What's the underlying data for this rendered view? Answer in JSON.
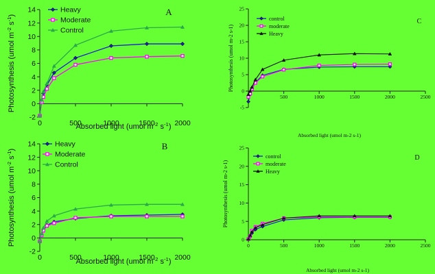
{
  "chart_data": [
    {
      "type": "line",
      "panel_letter": "A",
      "xlabel": "Absorbed light (umol m-2 s-1)",
      "ylabel": "Photosynthesis (umol m-2 s-1)",
      "xlim": [
        0,
        2000
      ],
      "ylim": [
        -2,
        14
      ],
      "x_ticks": [
        0,
        500,
        1000,
        1500,
        2000
      ],
      "y_ticks": [
        -2,
        0,
        2,
        4,
        6,
        8,
        10,
        12,
        14
      ],
      "legend_position": "top-left",
      "x": [
        0,
        25,
        50,
        100,
        200,
        500,
        1000,
        1500,
        2000
      ],
      "series": [
        {
          "name": "Heavy",
          "color": "#1a1ad0",
          "marker": "diamond",
          "values": [
            -1.8,
            0.4,
            1.5,
            2.8,
            4.6,
            6.8,
            8.6,
            8.9,
            8.9
          ]
        },
        {
          "name": "Moderate",
          "color": "#ff00ff",
          "marker": "square",
          "values": [
            -1.8,
            0.2,
            1.0,
            2.2,
            3.8,
            5.8,
            6.8,
            7.0,
            7.1
          ]
        },
        {
          "name": "Control",
          "color": "#2aa84a",
          "marker": "triangle",
          "values": [
            -1.8,
            0.6,
            1.8,
            3.0,
            5.6,
            8.7,
            10.8,
            11.3,
            11.4
          ]
        }
      ]
    },
    {
      "type": "line",
      "panel_letter": "B",
      "xlabel": "Absorbed light (umol m-2 s-1)",
      "ylabel": "Photosynthesis (umol m-2 s-1)",
      "xlim": [
        0,
        2000
      ],
      "ylim": [
        -2,
        14
      ],
      "x_ticks": [
        0,
        500,
        1000,
        1500,
        2000
      ],
      "y_ticks": [
        -2,
        0,
        2,
        4,
        6,
        8,
        10,
        12,
        14
      ],
      "legend_position": "top-left",
      "x": [
        0,
        25,
        50,
        100,
        200,
        500,
        1000,
        1500,
        2000
      ],
      "series": [
        {
          "name": "Heavy",
          "color": "#1a1ad0",
          "marker": "diamond",
          "values": [
            -0.5,
            0.5,
            1.2,
            1.9,
            2.4,
            2.9,
            3.3,
            3.4,
            3.5
          ]
        },
        {
          "name": "Moderate",
          "color": "#ff00ff",
          "marker": "square",
          "values": [
            -0.5,
            0.4,
            1.1,
            1.8,
            2.2,
            3.0,
            3.2,
            3.2,
            3.2
          ]
        },
        {
          "name": "Control",
          "color": "#2aa84a",
          "marker": "triangle",
          "values": [
            -0.5,
            0.6,
            1.5,
            2.5,
            3.3,
            4.3,
            4.9,
            5.0,
            5.0
          ]
        }
      ]
    },
    {
      "type": "line",
      "panel_letter": "C",
      "xlabel": "Absorbed light (umol m-2 s-1)",
      "ylabel": "Photosynthesis (umol m-2 s-1)",
      "xlim": [
        0,
        2500
      ],
      "ylim": [
        -5,
        25
      ],
      "x_ticks": [
        500,
        1000,
        1500,
        2000,
        2500
      ],
      "y_ticks": [
        -5,
        0,
        5,
        10,
        15,
        20,
        25
      ],
      "legend_position": "top-left",
      "x": [
        0,
        25,
        50,
        100,
        200,
        500,
        1000,
        1500,
        2000
      ],
      "series": [
        {
          "name": "control",
          "color": "#1a1ad0",
          "marker": "diamond",
          "values": [
            -3.2,
            -1.0,
            0.6,
            2.7,
            4.8,
            6.6,
            7.3,
            7.4,
            7.4
          ]
        },
        {
          "name": "moderate",
          "color": "#ff00ff",
          "marker": "square",
          "values": [
            -1.8,
            -0.8,
            0.6,
            2.5,
            4.4,
            6.5,
            7.8,
            8.1,
            8.2
          ]
        },
        {
          "name": "Heavy",
          "color": "#111111",
          "marker": "triangle",
          "values": [
            -1.0,
            0.0,
            1.2,
            3.5,
            6.6,
            9.4,
            11.0,
            11.4,
            11.3
          ]
        }
      ]
    },
    {
      "type": "line",
      "panel_letter": "D",
      "xlabel": "Absorbed light (umol m-2 s-1)",
      "ylabel": "Photosynthesis (umol m-2 s-1)",
      "xlim": [
        0,
        2500
      ],
      "ylim": [
        0,
        25
      ],
      "x_ticks": [
        0,
        500,
        1000,
        1500,
        2000,
        2500
      ],
      "y_ticks": [
        0,
        5,
        10,
        15,
        20,
        25
      ],
      "legend_position": "top-left",
      "x": [
        0,
        25,
        50,
        100,
        200,
        500,
        1000,
        1500,
        2000
      ],
      "series": [
        {
          "name": "control",
          "color": "#1a1ad0",
          "marker": "diamond",
          "values": [
            0.2,
            0.8,
            1.8,
            2.8,
            3.6,
            5.4,
            6.0,
            6.1,
            6.1
          ]
        },
        {
          "name": "moderate",
          "color": "#ff00ff",
          "marker": "square",
          "values": [
            0.2,
            1.0,
            2.5,
            3.5,
            4.4,
            5.9,
            6.2,
            6.2,
            6.2
          ]
        },
        {
          "name": "Heavy",
          "color": "#111111",
          "marker": "triangle",
          "values": [
            0.2,
            1.2,
            2.2,
            3.3,
            4.1,
            5.9,
            6.5,
            6.5,
            6.5
          ]
        }
      ]
    }
  ]
}
